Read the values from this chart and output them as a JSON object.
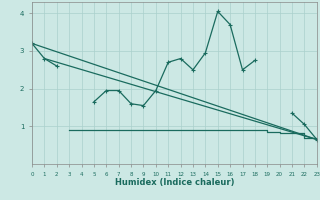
{
  "xlabel": "Humidex (Indice chaleur)",
  "x": [
    0,
    1,
    2,
    3,
    4,
    5,
    6,
    7,
    8,
    9,
    10,
    11,
    12,
    13,
    14,
    15,
    16,
    17,
    18,
    19,
    20,
    21,
    22,
    23
  ],
  "line1": [
    3.2,
    2.8,
    2.6,
    null,
    null,
    1.65,
    1.95,
    1.95,
    1.6,
    1.55,
    1.95,
    2.7,
    2.8,
    2.5,
    2.95,
    4.05,
    3.7,
    2.5,
    2.75,
    null,
    null,
    1.35,
    1.05,
    0.65
  ],
  "line2_x": [
    0,
    23
  ],
  "line2_y": [
    3.2,
    0.65
  ],
  "line3_x": [
    1,
    23
  ],
  "line3_y": [
    2.8,
    0.65
  ],
  "line4_x": [
    3,
    4,
    5,
    6,
    7,
    8,
    9,
    10,
    11,
    12,
    13,
    14,
    15,
    16,
    17,
    18,
    19,
    20,
    22,
    23
  ],
  "line4_y": [
    0.9,
    0.9,
    0.9,
    0.9,
    0.9,
    0.9,
    0.9,
    0.9,
    0.9,
    0.9,
    0.9,
    0.9,
    0.9,
    0.9,
    0.9,
    0.9,
    0.85,
    0.83,
    0.7,
    0.65
  ],
  "bg_color": "#cce8e4",
  "grid_color": "#aad0cc",
  "line_color": "#1a6b5e",
  "ylim": [
    0,
    4.3
  ],
  "xlim": [
    0,
    23
  ],
  "yticks": [
    1,
    2,
    3,
    4
  ],
  "xticks": [
    0,
    1,
    2,
    3,
    4,
    5,
    6,
    7,
    8,
    9,
    10,
    11,
    12,
    13,
    14,
    15,
    16,
    17,
    18,
    19,
    20,
    21,
    22,
    23
  ]
}
